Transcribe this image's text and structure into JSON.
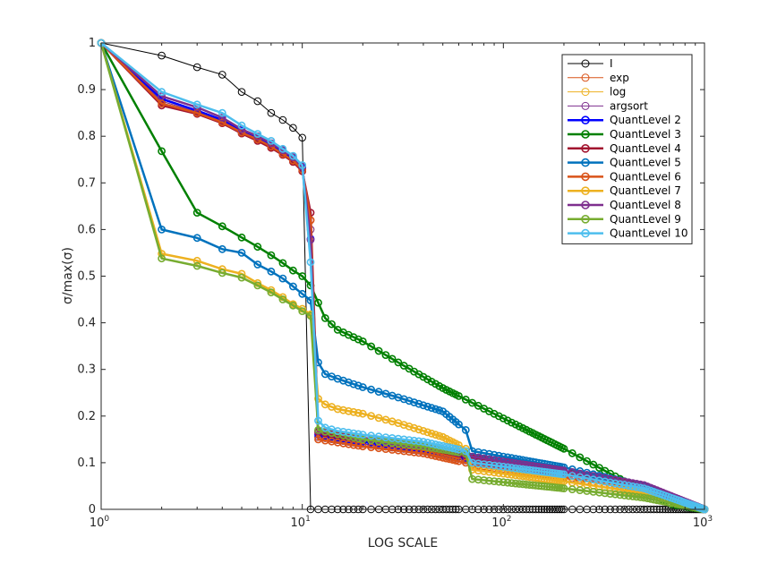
{
  "chart_data": {
    "type": "line",
    "xlabel": "LOG SCALE",
    "ylabel": "σ/max(σ)",
    "xscale": "log",
    "xlim": [
      1,
      1000
    ],
    "ylim": [
      0,
      1
    ],
    "grid": false,
    "legend_position": "top-right",
    "x_ticks": [
      {
        "value": 1,
        "base": "10",
        "exp": "0"
      },
      {
        "value": 10,
        "base": "10",
        "exp": "1"
      },
      {
        "value": 100,
        "base": "10",
        "exp": "2"
      },
      {
        "value": 1000,
        "base": "10",
        "exp": "3"
      }
    ],
    "y_ticks": [
      "0",
      "0.1",
      "0.2",
      "0.3",
      "0.4",
      "0.5",
      "0.6",
      "0.7",
      "0.8",
      "0.9",
      "1"
    ],
    "series": [
      {
        "name": "I",
        "color": "#000000",
        "width": 1,
        "x": [
          1,
          2,
          3,
          4,
          5,
          6,
          7,
          8,
          9,
          10,
          11,
          12,
          1000
        ],
        "y": [
          1,
          0.973,
          0.948,
          0.932,
          0.895,
          0.875,
          0.85,
          0.835,
          0.818,
          0.797,
          0,
          0,
          0
        ]
      },
      {
        "name": "exp",
        "color": "#D95319",
        "width": 1,
        "x": [
          1,
          2,
          3,
          4,
          5,
          6,
          7,
          8,
          9,
          10,
          11,
          12,
          20,
          40,
          65,
          70,
          200,
          500,
          1000
        ],
        "y": [
          1,
          0.875,
          0.852,
          0.832,
          0.81,
          0.795,
          0.78,
          0.765,
          0.75,
          0.73,
          0.62,
          0.155,
          0.14,
          0.125,
          0.105,
          0.1,
          0.07,
          0.04,
          0
        ]
      },
      {
        "name": "log",
        "color": "#EDB120",
        "width": 1,
        "x": [
          1,
          2,
          3,
          4,
          5,
          6,
          7,
          8,
          9,
          10,
          11,
          12,
          20,
          40,
          65,
          70,
          200,
          500,
          1000
        ],
        "y": [
          1,
          0.875,
          0.852,
          0.832,
          0.81,
          0.795,
          0.78,
          0.765,
          0.75,
          0.73,
          0.6,
          0.155,
          0.14,
          0.125,
          0.105,
          0.1,
          0.07,
          0.04,
          0
        ]
      },
      {
        "name": "argsort",
        "color": "#7E2F8E",
        "width": 1,
        "x": [
          1,
          2,
          3,
          4,
          5,
          6,
          7,
          8,
          9,
          10,
          11,
          12,
          20,
          40,
          65,
          70,
          200,
          500,
          1000
        ],
        "y": [
          1,
          0.875,
          0.852,
          0.832,
          0.81,
          0.795,
          0.78,
          0.765,
          0.75,
          0.73,
          0.6,
          0.155,
          0.14,
          0.125,
          0.105,
          0.1,
          0.07,
          0.04,
          0
        ]
      },
      {
        "name": "QuantLevel 2",
        "color": "#0000FF",
        "width": 2.5,
        "x": [
          1,
          2,
          3,
          4,
          5,
          6,
          7,
          8,
          9,
          10,
          11,
          12,
          20,
          40,
          65,
          70,
          200,
          500,
          1000
        ],
        "y": [
          1,
          0.88,
          0.855,
          0.835,
          0.812,
          0.797,
          0.782,
          0.767,
          0.752,
          0.732,
          0.58,
          0.16,
          0.145,
          0.13,
          0.11,
          0.105,
          0.075,
          0.045,
          0
        ]
      },
      {
        "name": "QuantLevel 3",
        "color": "#008000",
        "width": 2.5,
        "x": [
          1,
          2,
          3,
          4,
          5,
          6,
          7,
          8,
          9,
          10,
          11,
          12,
          13,
          15,
          20,
          30,
          50,
          100,
          200,
          400,
          700,
          1000
        ],
        "y": [
          1,
          0.768,
          0.636,
          0.607,
          0.583,
          0.563,
          0.545,
          0.528,
          0.512,
          0.5,
          0.48,
          0.443,
          0.41,
          0.385,
          0.36,
          0.315,
          0.26,
          0.195,
          0.13,
          0.06,
          0.01,
          0
        ]
      },
      {
        "name": "QuantLevel 4",
        "color": "#A2142F",
        "width": 2.5,
        "x": [
          1,
          2,
          3,
          4,
          5,
          6,
          7,
          8,
          9,
          10,
          11,
          12,
          20,
          40,
          65,
          70,
          200,
          500,
          1000
        ],
        "y": [
          1,
          0.866,
          0.848,
          0.828,
          0.806,
          0.79,
          0.775,
          0.76,
          0.745,
          0.725,
          0.636,
          0.165,
          0.15,
          0.135,
          0.115,
          0.11,
          0.08,
          0.05,
          0
        ]
      },
      {
        "name": "QuantLevel 5",
        "color": "#0072BD",
        "width": 2.5,
        "x": [
          1,
          2,
          3,
          4,
          5,
          6,
          7,
          8,
          9,
          10,
          11,
          12,
          13,
          15,
          20,
          30,
          50,
          65,
          70,
          200,
          500,
          1000
        ],
        "y": [
          1,
          0.6,
          0.582,
          0.558,
          0.55,
          0.525,
          0.51,
          0.495,
          0.478,
          0.462,
          0.448,
          0.315,
          0.29,
          0.28,
          0.262,
          0.24,
          0.21,
          0.17,
          0.125,
          0.09,
          0.05,
          0
        ]
      },
      {
        "name": "QuantLevel 6",
        "color": "#D95319",
        "width": 2.5,
        "x": [
          1,
          2,
          3,
          4,
          5,
          6,
          7,
          8,
          9,
          10,
          11,
          12,
          20,
          40,
          65,
          70,
          200,
          500,
          1000
        ],
        "y": [
          1,
          0.87,
          0.85,
          0.83,
          0.808,
          0.793,
          0.778,
          0.762,
          0.748,
          0.728,
          0.62,
          0.15,
          0.135,
          0.12,
          0.1,
          0.095,
          0.068,
          0.04,
          0
        ]
      },
      {
        "name": "QuantLevel 7",
        "color": "#EDB120",
        "width": 2.5,
        "x": [
          1,
          2,
          3,
          4,
          5,
          6,
          7,
          8,
          9,
          10,
          11,
          12,
          13,
          15,
          20,
          30,
          50,
          65,
          70,
          200,
          500,
          1000
        ],
        "y": [
          1,
          0.548,
          0.533,
          0.515,
          0.505,
          0.485,
          0.47,
          0.455,
          0.44,
          0.43,
          0.418,
          0.237,
          0.225,
          0.215,
          0.205,
          0.185,
          0.155,
          0.13,
          0.085,
          0.06,
          0.035,
          0
        ]
      },
      {
        "name": "QuantLevel 8",
        "color": "#7E2F8E",
        "width": 2.5,
        "x": [
          1,
          2,
          3,
          4,
          5,
          6,
          7,
          8,
          9,
          10,
          11,
          12,
          20,
          40,
          65,
          70,
          200,
          500,
          1000
        ],
        "y": [
          1,
          0.886,
          0.862,
          0.84,
          0.815,
          0.8,
          0.785,
          0.77,
          0.755,
          0.735,
          0.578,
          0.168,
          0.153,
          0.138,
          0.118,
          0.113,
          0.083,
          0.052,
          0
        ]
      },
      {
        "name": "QuantLevel 9",
        "color": "#77AC30",
        "width": 2.5,
        "x": [
          1,
          2,
          3,
          4,
          5,
          6,
          7,
          8,
          9,
          10,
          11,
          12,
          20,
          40,
          65,
          70,
          200,
          500,
          1000
        ],
        "y": [
          1,
          0.538,
          0.522,
          0.507,
          0.497,
          0.48,
          0.465,
          0.45,
          0.437,
          0.425,
          0.415,
          0.17,
          0.15,
          0.135,
          0.12,
          0.065,
          0.045,
          0.025,
          0
        ]
      },
      {
        "name": "QuantLevel 10",
        "color": "#4DBEEE",
        "width": 2.5,
        "x": [
          1,
          2,
          3,
          4,
          5,
          6,
          7,
          8,
          9,
          10,
          11,
          12,
          13,
          15,
          20,
          40,
          65,
          70,
          200,
          500,
          1000
        ],
        "y": [
          1,
          0.895,
          0.868,
          0.85,
          0.823,
          0.805,
          0.79,
          0.773,
          0.758,
          0.738,
          0.53,
          0.19,
          0.175,
          0.168,
          0.16,
          0.145,
          0.125,
          0.1,
          0.075,
          0.045,
          0
        ]
      }
    ]
  }
}
